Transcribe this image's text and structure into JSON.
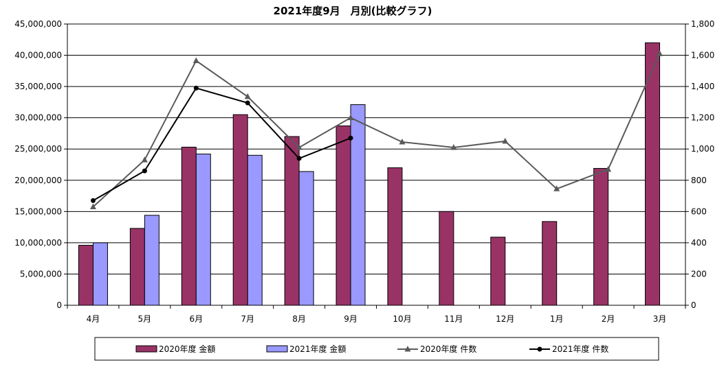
{
  "chart_data": {
    "type": "bar+line",
    "title": "2021年度9月　月別(比較グラフ)",
    "categories": [
      "4月",
      "5月",
      "6月",
      "7月",
      "8月",
      "9月",
      "10月",
      "11月",
      "12月",
      "1月",
      "2月",
      "3月"
    ],
    "y_left": {
      "range": [
        0,
        45000000
      ],
      "ticks": [
        0,
        5000000,
        10000000,
        15000000,
        20000000,
        25000000,
        30000000,
        35000000,
        40000000,
        45000000
      ],
      "tick_labels": [
        "0",
        "5,000,000",
        "10,000,000",
        "15,000,000",
        "20,000,000",
        "25,000,000",
        "30,000,000",
        "35,000,000",
        "40,000,000",
        "45,000,000"
      ]
    },
    "y_right": {
      "range": [
        0,
        1800
      ],
      "ticks": [
        0,
        200,
        400,
        600,
        800,
        1000,
        1200,
        1400,
        1600,
        1800
      ],
      "tick_labels": [
        "0",
        "200",
        "400",
        "600",
        "800",
        "1,000",
        "1,200",
        "1,400",
        "1,600",
        "1,800"
      ]
    },
    "series": [
      {
        "name": "2020年度 金額",
        "kind": "bar",
        "axis": "left",
        "color": "#993366",
        "values": [
          9600000,
          12300000,
          25300000,
          30500000,
          27000000,
          28700000,
          22000000,
          15000000,
          10900000,
          13400000,
          21900000,
          42000000
        ]
      },
      {
        "name": "2021年度 金額",
        "kind": "bar",
        "axis": "left",
        "color": "#9999ff",
        "values": [
          10000000,
          14400000,
          24200000,
          24000000,
          21400000,
          32100000,
          null,
          null,
          null,
          null,
          null,
          null
        ]
      },
      {
        "name": "2020年度 件数",
        "kind": "line",
        "axis": "right",
        "color": "#595959",
        "marker": "triangle",
        "values": [
          630,
          930,
          1565,
          1335,
          1010,
          1200,
          1045,
          1010,
          1050,
          745,
          870,
          1610
        ]
      },
      {
        "name": "2021年度 件数",
        "kind": "line",
        "axis": "right",
        "color": "#000000",
        "marker": "circle",
        "values": [
          670,
          860,
          1390,
          1295,
          940,
          1070,
          null,
          null,
          null,
          null,
          null,
          null
        ]
      }
    ],
    "legend_position": "bottom",
    "grid": "horizontal"
  }
}
